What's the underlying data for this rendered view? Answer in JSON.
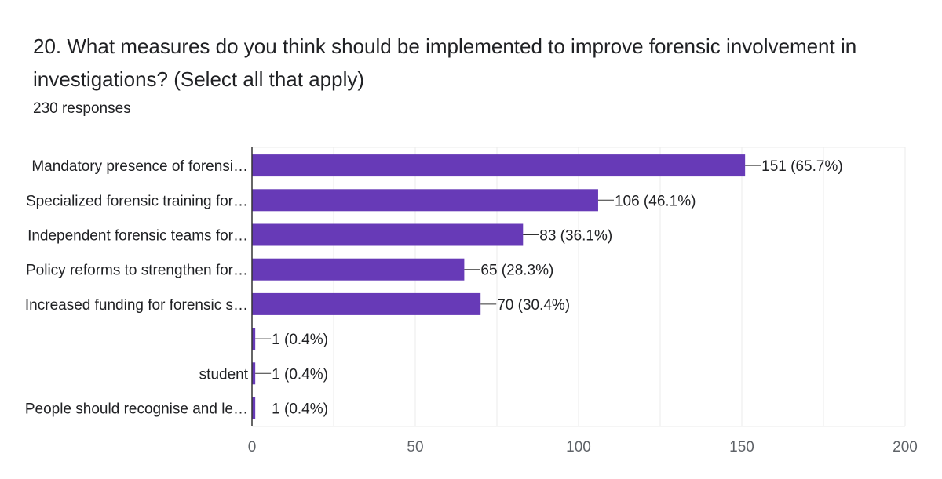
{
  "question": {
    "title": "20. What measures do you think should be implemented to improve forensic involvement in investigations? (Select all that apply)",
    "responses": "230 responses"
  },
  "colors": {
    "bar": "#673ab7",
    "grid": "#ebebeb",
    "axis": "#333333"
  },
  "chart_data": {
    "type": "bar",
    "orientation": "horizontal",
    "categories": [
      "Mandatory presence of forensi…",
      "Specialized forensic training for…",
      "Independent forensic teams for…",
      "Policy reforms to strengthen for…",
      "Increased funding for forensic s…",
      "",
      "student",
      "People should recognise and le…"
    ],
    "values": [
      151,
      106,
      83,
      65,
      70,
      1,
      1,
      1
    ],
    "value_labels": [
      "151 (65.7%)",
      "106 (46.1%)",
      "83 (36.1%)",
      "65 (28.3%)",
      "70 (30.4%)",
      "1 (0.4%)",
      "1 (0.4%)",
      "1 (0.4%)"
    ],
    "xlim": [
      0,
      200
    ],
    "xticks": [
      0,
      50,
      100,
      150,
      200
    ],
    "grid": true
  }
}
